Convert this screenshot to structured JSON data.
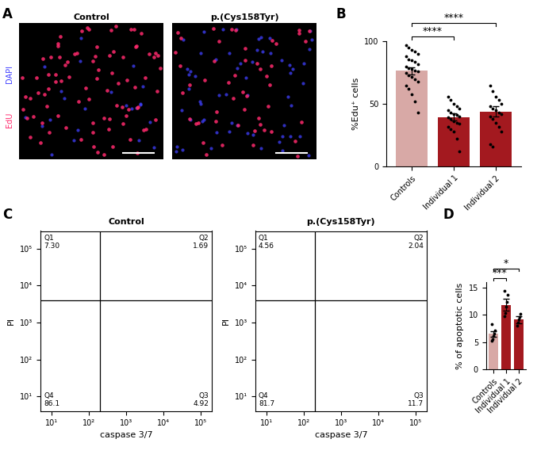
{
  "panel_labels": [
    "A",
    "B",
    "C",
    "D"
  ],
  "images": {
    "type": "image",
    "titles": [
      "Control",
      "p.(Cys158Tyr)"
    ],
    "stains": [
      {
        "name": "EdU",
        "color": "#ff2a6d"
      },
      {
        "name": "DAPI",
        "color": "#4040ff"
      }
    ]
  },
  "chart_data": [
    {
      "type": "bar",
      "ylabel": "%Edu⁺ cells",
      "categories": [
        "Controls",
        "Individual 1",
        "Individual 2"
      ],
      "values": [
        76.5,
        39.5,
        44
      ],
      "errors": [
        2.8,
        2.9,
        3.9
      ],
      "points": [
        [
          97,
          95,
          93,
          92,
          90,
          88,
          86,
          85,
          84,
          82,
          80,
          79,
          78,
          77,
          76,
          75,
          73,
          72,
          70,
          68,
          65,
          62,
          58,
          52,
          43
        ],
        [
          56,
          53,
          50,
          48,
          46,
          45,
          43,
          42,
          41,
          40,
          39,
          38,
          36,
          35,
          34,
          32,
          30,
          28,
          22,
          12
        ],
        [
          65,
          60,
          56,
          53,
          50,
          48,
          46,
          45,
          43,
          42,
          40,
          38,
          35,
          32,
          28,
          18,
          16
        ]
      ],
      "colors": [
        "#d8a9a6",
        "#a3191f",
        "#a3191f"
      ],
      "ylim": [
        0,
        100
      ],
      "yticks": [
        0,
        50,
        100
      ],
      "annotations": [
        {
          "between": [
            "Controls",
            "Individual 1"
          ],
          "label": "****"
        },
        {
          "between": [
            "Controls",
            "Individual 2"
          ],
          "label": "****"
        }
      ]
    },
    {
      "type": "scatter",
      "title": "Control",
      "xlabel": "caspase 3/7",
      "ylabel": "PI",
      "log": true,
      "xlim": [
        5,
        200000
      ],
      "ylim": [
        4,
        300000
      ],
      "xticks": [
        {
          "value": 10,
          "label": "10¹"
        },
        {
          "value": 100,
          "label": "10²"
        },
        {
          "value": 1000,
          "label": "10³"
        },
        {
          "value": 10000,
          "label": "10⁴"
        },
        {
          "value": 100000,
          "label": "10⁵"
        }
      ],
      "yticks": [
        {
          "value": 10,
          "label": "10¹"
        },
        {
          "value": 100,
          "label": "10²"
        },
        {
          "value": 1000,
          "label": "10³"
        },
        {
          "value": 10000,
          "label": "10⁴"
        },
        {
          "value": 100000,
          "label": "10⁵"
        }
      ],
      "gate": {
        "x": 200,
        "y": 4000
      },
      "quadrants": [
        {
          "name": "Q1",
          "value": 7.3,
          "label": "7.30"
        },
        {
          "name": "Q2",
          "value": 1.69,
          "label": "1.69"
        },
        {
          "name": "Q3",
          "value": 4.92,
          "label": "4.92"
        },
        {
          "name": "Q4",
          "value": 86.1,
          "label": "86.1"
        }
      ]
    },
    {
      "type": "scatter",
      "title": "p.(Cys158Tyr)",
      "xlabel": "caspase 3/7",
      "ylabel": "PI",
      "log": true,
      "xlim": [
        5,
        200000
      ],
      "ylim": [
        4,
        300000
      ],
      "xticks": [
        {
          "value": 10,
          "label": "10¹"
        },
        {
          "value": 100,
          "label": "10²"
        },
        {
          "value": 1000,
          "label": "10³"
        },
        {
          "value": 10000,
          "label": "10⁴"
        },
        {
          "value": 100000,
          "label": "10⁵"
        }
      ],
      "yticks": [
        {
          "value": 10,
          "label": "10¹"
        },
        {
          "value": 100,
          "label": "10²"
        },
        {
          "value": 1000,
          "label": "10³"
        },
        {
          "value": 10000,
          "label": "10⁴"
        },
        {
          "value": 100000,
          "label": "10⁵"
        }
      ],
      "gate": {
        "x": 200,
        "y": 4000
      },
      "quadrants": [
        {
          "name": "Q1",
          "value": 4.56,
          "label": "4.56"
        },
        {
          "name": "Q2",
          "value": 2.04,
          "label": "2.04"
        },
        {
          "name": "Q3",
          "value": 11.7,
          "label": "11.7"
        },
        {
          "name": "Q4",
          "value": 81.7,
          "label": "81.7"
        }
      ]
    },
    {
      "type": "bar",
      "ylabel": "% of apoptotic cells",
      "categories": [
        "Controls",
        "Individual 1",
        "Individual 2"
      ],
      "values": [
        6.5,
        11.8,
        9.1
      ],
      "errors": [
        0.5,
        1.1,
        0.6
      ],
      "points": [
        [
          5.3,
          5.6,
          6.1,
          6.6,
          7.1,
          8.3
        ],
        [
          9.8,
          10.3,
          11.4,
          12.4,
          13.6,
          14.4
        ],
        [
          8.0,
          8.6,
          9.2,
          9.6,
          10.1
        ]
      ],
      "colors": [
        "#d8a9a6",
        "#a3191f",
        "#a3191f"
      ],
      "ylim": [
        0,
        16
      ],
      "yticks": [
        0,
        5,
        10,
        15
      ],
      "annotations": [
        {
          "between": [
            "Controls",
            "Individual 1"
          ],
          "label": "***"
        },
        {
          "between": [
            "Controls",
            "Individual 2"
          ],
          "label": "*"
        }
      ]
    }
  ]
}
